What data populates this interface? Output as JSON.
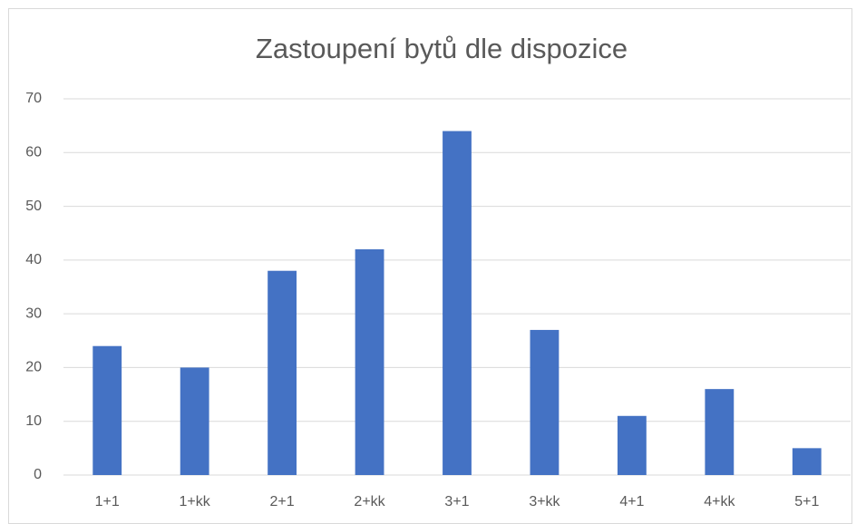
{
  "chart_data": {
    "type": "bar",
    "title": "Zastoupení bytů dle dispozice",
    "categories": [
      "1+1",
      "1+kk",
      "2+1",
      "2+kk",
      "3+1",
      "3+kk",
      "4+1",
      "4+kk",
      "5+1"
    ],
    "values": [
      24,
      20,
      38,
      42,
      64,
      27,
      11,
      16,
      5
    ],
    "color": "#4472c4",
    "ylim": [
      0,
      70
    ],
    "yticks": [
      0,
      10,
      20,
      30,
      40,
      50,
      60,
      70
    ],
    "grid": true
  }
}
